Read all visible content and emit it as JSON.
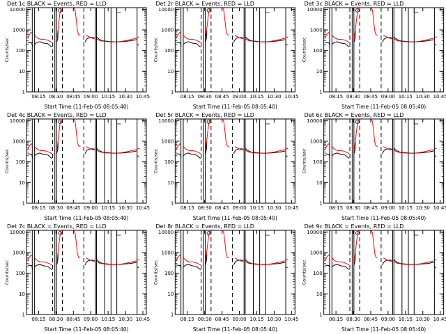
{
  "chart_data": [
    {
      "type": "line",
      "title": "Det 1c BLACK = Events, RED = LLD",
      "xlabel": "Start Time (11-Feb-05 08:05:40)",
      "ylabel": "Counts/sec"
    },
    {
      "type": "line",
      "title": "Det 2r BLACK = Events, RED = LLD",
      "xlabel": "Start Time (11-Feb-05 08:05:40)",
      "ylabel": "Counts/sec"
    },
    {
      "type": "line",
      "title": "Det 3c BLACK = Events, RED = LLD",
      "xlabel": "Start Time (11-Feb-05 08:05:40)",
      "ylabel": "Counts/sec"
    },
    {
      "type": "line",
      "title": "Det 4c BLACK = Events, RED = LLD",
      "xlabel": "Start Time (11-Feb-05 08:05:40)",
      "ylabel": "Counts/sec"
    },
    {
      "type": "line",
      "title": "Det 5r BLACK = Events, RED = LLD",
      "xlabel": "Start Time (11-Feb-05 08:05:40)",
      "ylabel": "Counts/sec"
    },
    {
      "type": "line",
      "title": "Det 6c BLACK = Events, RED = LLD",
      "xlabel": "Start Time (11-Feb-05 08:05:40)",
      "ylabel": "Counts/sec"
    },
    {
      "type": "line",
      "title": "Det 7c BLACK = Events, RED = LLD",
      "xlabel": "Start Time (11-Feb-05 08:05:40)",
      "ylabel": "Counts/sec"
    },
    {
      "type": "line",
      "title": "Det 8r BLACK = Events, RED = LLD",
      "xlabel": "Start Time (11-Feb-05 08:05:40)",
      "ylabel": "Counts/sec"
    },
    {
      "type": "line",
      "title": "Det 9c BLACK = Events, RED = LLD",
      "xlabel": "Start Time (11-Feb-05 08:05:40)",
      "ylabel": "Counts/sec"
    }
  ],
  "shared": {
    "x_tick_labels": [
      "08:15",
      "08:30",
      "08:45",
      "09:00",
      "10:15",
      "10:30",
      "10:45"
    ],
    "x_tick_minutes": [
      495,
      510,
      525,
      540,
      555,
      570,
      585
    ],
    "x_range_minutes": [
      484.5,
      588
    ],
    "y_tick_labels": [
      "1",
      "10",
      "100",
      "1000",
      "10000"
    ],
    "y_range": [
      1,
      12000
    ],
    "y_scale": "log",
    "colors": {
      "events": "#000000",
      "lld": "#ff0000",
      "axes": "#000000",
      "background": "#ffffff"
    },
    "solid_markers_minutes": [
      489.5,
      491.5,
      509,
      510.5,
      544,
      545,
      552,
      557.5,
      562.5,
      580
    ],
    "dashed_markers_minutes": [
      507,
      515.5,
      534
    ],
    "events_series": {
      "name": "Events",
      "segments": [
        [
          [
            485.5,
            250
          ],
          [
            489,
            235
          ],
          [
            489.8,
            160
          ]
        ],
        [
          [
            491.8,
            200
          ],
          [
            493,
            240
          ],
          [
            496,
            270
          ],
          [
            499,
            230
          ],
          [
            503,
            215
          ],
          [
            505.5,
            160
          ],
          [
            506.5,
            150
          ]
        ],
        [
          [
            510.7,
            260
          ],
          [
            511.5,
            400
          ],
          [
            511.8,
            900
          ]
        ],
        [
          [
            535,
            250
          ],
          [
            536,
            320
          ],
          [
            537,
            380
          ],
          [
            539,
            420
          ],
          [
            541,
            430
          ],
          [
            543.5,
            420
          ]
        ],
        [
          [
            545.3,
            460
          ],
          [
            546,
            400
          ],
          [
            548,
            340
          ],
          [
            550,
            300
          ],
          [
            551.8,
            290
          ]
        ],
        [
          [
            552.3,
            290
          ],
          [
            555,
            280
          ],
          [
            557.2,
            270
          ]
        ],
        [
          [
            557.8,
            270
          ],
          [
            560,
            265
          ],
          [
            562.2,
            265
          ]
        ],
        [
          [
            562.8,
            265
          ],
          [
            566,
            270
          ],
          [
            570,
            280
          ],
          [
            575,
            300
          ],
          [
            579.5,
            340
          ]
        ],
        [
          [
            580.3,
            200
          ],
          [
            581.5,
            180
          ]
        ]
      ]
    },
    "lld_series": {
      "name": "LLD",
      "segments": [
        [
          [
            485.5,
            400
          ],
          [
            487,
            600
          ],
          [
            488.5,
            750
          ],
          [
            489.3,
            700
          ]
        ],
        [
          [
            491.8,
            550
          ],
          [
            493,
            450
          ],
          [
            495,
            380
          ],
          [
            497,
            350
          ],
          [
            499,
            360
          ],
          [
            502,
            330
          ],
          [
            505,
            280
          ],
          [
            506.5,
            250
          ]
        ],
        [
          [
            510.7,
            350
          ],
          [
            511.5,
            800
          ],
          [
            512.5,
            2500
          ],
          [
            513.5,
            7000
          ],
          [
            514.5,
            12000
          ]
        ],
        [
          [
            525.5,
            12000
          ],
          [
            526.5,
            9000
          ],
          [
            527.5,
            3000
          ],
          [
            528.5,
            900
          ],
          [
            529.5,
            600
          ],
          [
            531,
            550
          ]
        ],
        [
          [
            536,
            550
          ],
          [
            538,
            480
          ],
          [
            541,
            400
          ],
          [
            543.5,
            370
          ]
        ],
        [
          [
            545.3,
            360
          ],
          [
            548,
            300
          ],
          [
            551.8,
            280
          ]
        ],
        [
          [
            552.3,
            275
          ],
          [
            557.2,
            265
          ]
        ],
        [
          [
            557.8,
            265
          ],
          [
            562.2,
            262
          ]
        ],
        [
          [
            562.8,
            265
          ],
          [
            567,
            280
          ],
          [
            572,
            320
          ],
          [
            576,
            360
          ],
          [
            579.5,
            400
          ]
        ],
        [
          [
            580.3,
            430
          ],
          [
            582,
            460
          ]
        ]
      ]
    }
  }
}
